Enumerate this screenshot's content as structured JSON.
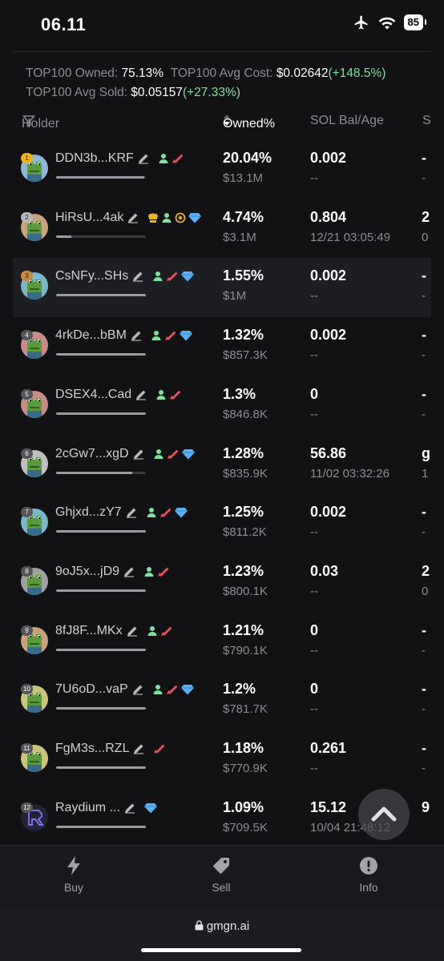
{
  "status": {
    "time": "06.11",
    "battery": "85"
  },
  "summary": {
    "owned_label": "TOP100 Owned:",
    "owned_value": "75.13%",
    "avg_cost_label": "TOP100 Avg Cost:",
    "avg_cost_value": "$0.02642",
    "avg_cost_change": "(+148.5%)",
    "avg_sold_label": "TOP100 Avg Sold:",
    "avg_sold_value": "$0.05157",
    "avg_sold_change": "(+27.33%)"
  },
  "columns": {
    "holder": "Holder",
    "owned": "Owned%",
    "sol": "SOL Bal/Age",
    "next": "S"
  },
  "holders": [
    {
      "rank": "1",
      "name": "DDN3b...KRF",
      "tags": [
        "person",
        "fish"
      ],
      "owned": "20.04%",
      "usd": "$13.1M",
      "sol": "0.002",
      "age": "--",
      "cut": "-",
      "cut2": "-",
      "bar": 0.98
    },
    {
      "rank": "2",
      "name": "HiRsU...4ak",
      "tags": [
        "chef",
        "person",
        "target",
        "diamond"
      ],
      "owned": "4.74%",
      "usd": "$3.1M",
      "sol": "0.804",
      "age": "12/21 03:05:49",
      "cut": "2",
      "cut2": "0",
      "bar": 0.17
    },
    {
      "rank": "3",
      "name": "CsNFy...SHs",
      "tags": [
        "person",
        "fish",
        "diamond"
      ],
      "owned": "1.55%",
      "usd": "$1M",
      "sol": "0.002",
      "age": "--",
      "cut": "-",
      "cut2": "-",
      "bar": 1.0
    },
    {
      "rank": "4",
      "name": "4rkDe...bBM",
      "tags": [
        "person",
        "fish",
        "diamond"
      ],
      "owned": "1.32%",
      "usd": "$857.3K",
      "sol": "0.002",
      "age": "--",
      "cut": "-",
      "cut2": "-",
      "bar": 1.0
    },
    {
      "rank": "5",
      "name": "DSEX4...Cad",
      "tags": [
        "person",
        "fish"
      ],
      "owned": "1.3%",
      "usd": "$846.8K",
      "sol": "0",
      "age": "--",
      "cut": "-",
      "cut2": "-",
      "bar": 1.0
    },
    {
      "rank": "6",
      "name": "2cGw7...xgD",
      "tags": [
        "person",
        "fish",
        "diamond"
      ],
      "owned": "1.28%",
      "usd": "$835.9K",
      "sol": "56.86",
      "age": "11/02 03:32:26",
      "cut": "g",
      "cut2": "1",
      "bar": 0.85
    },
    {
      "rank": "7",
      "name": "Ghjxd...zY7",
      "tags": [
        "person",
        "fish",
        "diamond"
      ],
      "owned": "1.25%",
      "usd": "$811.2K",
      "sol": "0.002",
      "age": "--",
      "cut": "-",
      "cut2": "-",
      "bar": 1.0
    },
    {
      "rank": "8",
      "name": "9oJ5x...jD9",
      "tags": [
        "person",
        "fish"
      ],
      "owned": "1.23%",
      "usd": "$800.1K",
      "sol": "0.03",
      "age": "--",
      "cut": "2",
      "cut2": "0",
      "bar": 1.0
    },
    {
      "rank": "9",
      "name": "8fJ8F...MKx",
      "tags": [
        "person",
        "fish"
      ],
      "owned": "1.21%",
      "usd": "$790.1K",
      "sol": "0",
      "age": "--",
      "cut": "-",
      "cut2": "-",
      "bar": 1.0
    },
    {
      "rank": "10",
      "name": "7U6oD...vaP",
      "tags": [
        "person",
        "fish",
        "diamond"
      ],
      "owned": "1.2%",
      "usd": "$781.7K",
      "sol": "0",
      "age": "--",
      "cut": "-",
      "cut2": "-",
      "bar": 1.0
    },
    {
      "rank": "11",
      "name": "FgM3s...RZL",
      "tags": [
        "fish"
      ],
      "owned": "1.18%",
      "usd": "$770.9K",
      "sol": "0.261",
      "age": "--",
      "cut": "-",
      "cut2": "-",
      "bar": 1.0
    },
    {
      "rank": "12",
      "name": "Raydium ...",
      "tags": [
        "diamond"
      ],
      "owned": "1.09%",
      "usd": "$709.5K",
      "sol": "15.12",
      "age": "10/04 21:48:12",
      "cut": "9",
      "cut2": "",
      "bar": 1.0
    }
  ],
  "nav": {
    "buy": "Buy",
    "sell": "Sell",
    "info": "Info"
  },
  "url": "gmgn.ai",
  "colors": {
    "green": "#7fe0a0",
    "fish": "#e8505b",
    "diamond": "#5ab0f0",
    "gold": "#e8b61c"
  }
}
